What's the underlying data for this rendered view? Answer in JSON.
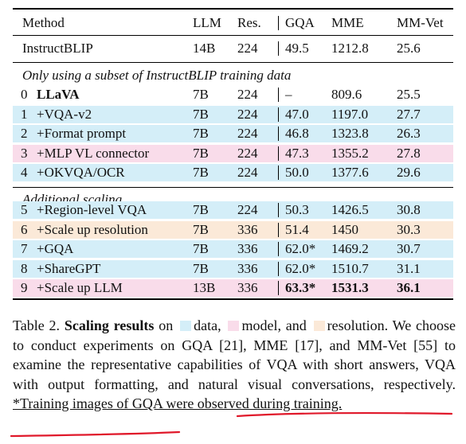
{
  "table": {
    "headers": {
      "method": "Method",
      "llm": "LLM",
      "res": "Res.",
      "gqa": "GQA",
      "mme": "MME",
      "mmvet": "MM-Vet"
    },
    "baseline": {
      "method": "InstructBLIP",
      "llm": "14B",
      "res": "224",
      "gqa": "49.5",
      "mme": "1212.8",
      "mmvet": "25.6"
    },
    "section1_title": "Only using a subset of InstructBLIP training data",
    "section1_rows": [
      {
        "idx": "0",
        "method": "LLaVA",
        "llm": "7B",
        "res": "224",
        "gqa": "–",
        "mme": "809.6",
        "mmvet": "25.5",
        "highlight": "none"
      },
      {
        "idx": "1",
        "method": "+VQA-v2",
        "llm": "7B",
        "res": "224",
        "gqa": "47.0",
        "mme": "1197.0",
        "mmvet": "27.7",
        "highlight": "data"
      },
      {
        "idx": "2",
        "method": "+Format prompt",
        "llm": "7B",
        "res": "224",
        "gqa": "46.8",
        "mme": "1323.8",
        "mmvet": "26.3",
        "highlight": "data"
      },
      {
        "idx": "3",
        "method": "+MLP VL connector",
        "llm": "7B",
        "res": "224",
        "gqa": "47.3",
        "mme": "1355.2",
        "mmvet": "27.8",
        "highlight": "model"
      },
      {
        "idx": "4",
        "method": "+OKVQA/OCR",
        "llm": "7B",
        "res": "224",
        "gqa": "50.0",
        "mme": "1377.6",
        "mmvet": "29.6",
        "highlight": "data"
      }
    ],
    "section2_title": "Additional scaling",
    "section2_rows": [
      {
        "idx": "5",
        "method": "+Region-level VQA",
        "llm": "7B",
        "res": "224",
        "gqa": "50.3",
        "mme": "1426.5",
        "mmvet": "30.8",
        "highlight": "data"
      },
      {
        "idx": "6",
        "method": "+Scale up resolution",
        "llm": "7B",
        "res": "336",
        "gqa": "51.4",
        "mme": "1450",
        "mmvet": "30.3",
        "highlight": "resolution"
      },
      {
        "idx": "7",
        "method": "+GQA",
        "llm": "7B",
        "res": "336",
        "gqa": "62.0*",
        "mme": "1469.2",
        "mmvet": "30.7",
        "highlight": "data"
      },
      {
        "idx": "8",
        "method": "+ShareGPT",
        "llm": "7B",
        "res": "336",
        "gqa": "62.0*",
        "mme": "1510.7",
        "mmvet": "31.1",
        "highlight": "data"
      },
      {
        "idx": "9",
        "method": "+Scale up LLM",
        "llm": "13B",
        "res": "336",
        "gqa": "63.3*",
        "mme": "1531.3",
        "mmvet": "36.1",
        "highlight": "model"
      }
    ]
  },
  "caption": {
    "label": "Table 2.",
    "title": "Scaling results",
    "on": "on",
    "data_word": "data,",
    "model_word": "model, and",
    "res_word": "resolution.",
    "body": "We choose to conduct experiments on GQA [21], MME [17], and MM-Vet [55] to examine the representative capabilities of VQA with short answers, VQA with output formatting, and natural visual conversations, respectively.",
    "note": "*Training images of GQA were observed during training."
  },
  "colors": {
    "data": "#d4eef8",
    "model": "#f9dcea",
    "resolution": "#fbe9d8",
    "annotation": "#e0182a"
  }
}
